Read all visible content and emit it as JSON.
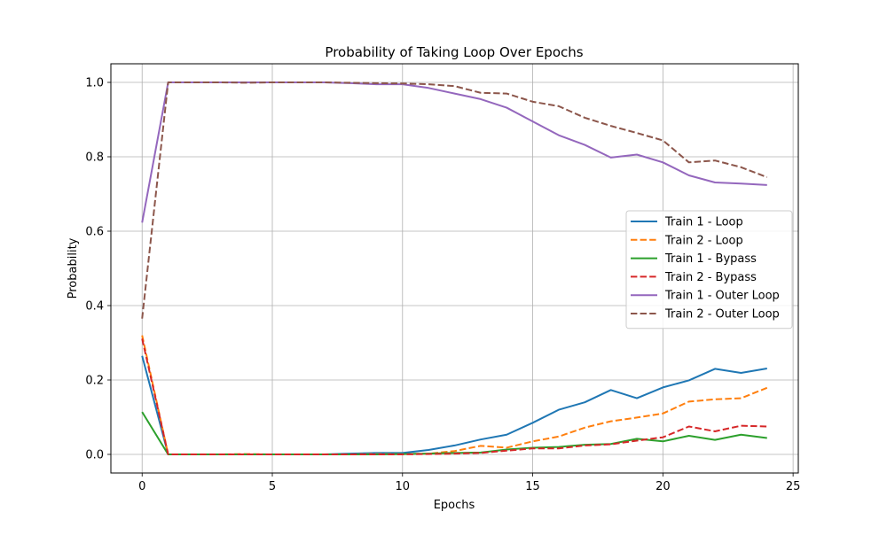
{
  "chart_data": {
    "type": "line",
    "title": "Probability of Taking Loop Over Epochs",
    "xlabel": "Epochs",
    "ylabel": "Probability",
    "xlim": [
      -1.2,
      25.2
    ],
    "ylim": [
      -0.05,
      1.05
    ],
    "xticks": [
      0,
      5,
      10,
      15,
      20,
      25
    ],
    "yticks": [
      0.0,
      0.2,
      0.4,
      0.6,
      0.8,
      1.0
    ],
    "xtick_labels": [
      "0",
      "5",
      "10",
      "15",
      "20",
      "25"
    ],
    "ytick_labels": [
      "0.0",
      "0.2",
      "0.4",
      "0.6",
      "0.8",
      "1.0"
    ],
    "grid": true,
    "legend_position": "center-right",
    "x": [
      0,
      1,
      2,
      3,
      4,
      5,
      6,
      7,
      8,
      9,
      10,
      11,
      12,
      13,
      14,
      15,
      16,
      17,
      18,
      19,
      20,
      21,
      22,
      23,
      24
    ],
    "series": [
      {
        "name": "Train 1 - Loop",
        "color": "#1f77b4",
        "dashed": false,
        "values": [
          0.265,
          0.0,
          0.0,
          0.0,
          0.0,
          0.0,
          0.0,
          0.0,
          0.002,
          0.004,
          0.004,
          0.012,
          0.024,
          0.04,
          0.053,
          0.085,
          0.12,
          0.14,
          0.173,
          0.151,
          0.18,
          0.199,
          0.23,
          0.219,
          0.231
        ]
      },
      {
        "name": "Train 2 - Loop",
        "color": "#ff7f0e",
        "dashed": true,
        "values": [
          0.32,
          0.0,
          0.0,
          0.0,
          0.001,
          0.0,
          0.0,
          0.0,
          0.0,
          0.001,
          0.001,
          0.002,
          0.009,
          0.023,
          0.018,
          0.035,
          0.048,
          0.072,
          0.089,
          0.099,
          0.11,
          0.142,
          0.148,
          0.151,
          0.179
        ]
      },
      {
        "name": "Train 1 - Bypass",
        "color": "#2ca02c",
        "dashed": false,
        "values": [
          0.114,
          0.0,
          0.0,
          0.0,
          0.0,
          0.0,
          0.0,
          0.0,
          0.0,
          0.0,
          0.001,
          0.002,
          0.004,
          0.005,
          0.013,
          0.018,
          0.02,
          0.026,
          0.028,
          0.042,
          0.035,
          0.05,
          0.039,
          0.053,
          0.044
        ]
      },
      {
        "name": "Train 2 - Bypass",
        "color": "#d62728",
        "dashed": true,
        "values": [
          0.311,
          0.0,
          0.0,
          0.0,
          0.0,
          0.0,
          0.0,
          0.0,
          0.0,
          0.0,
          0.0,
          0.001,
          0.002,
          0.004,
          0.01,
          0.016,
          0.016,
          0.024,
          0.027,
          0.037,
          0.046,
          0.075,
          0.062,
          0.077,
          0.075
        ]
      },
      {
        "name": "Train 1 - Outer Loop",
        "color": "#9467bd",
        "dashed": false,
        "values": [
          0.623,
          1.0,
          1.0,
          1.0,
          1.0,
          1.0,
          1.0,
          1.0,
          0.998,
          0.995,
          0.995,
          0.985,
          0.97,
          0.955,
          0.932,
          0.895,
          0.858,
          0.832,
          0.798,
          0.806,
          0.785,
          0.75,
          0.731,
          0.728,
          0.724
        ]
      },
      {
        "name": "Train 2 - Outer Loop",
        "color": "#8c564b",
        "dashed": true,
        "values": [
          0.365,
          1.0,
          1.0,
          1.0,
          0.999,
          1.0,
          1.0,
          1.0,
          0.999,
          0.998,
          0.997,
          0.995,
          0.99,
          0.972,
          0.97,
          0.948,
          0.936,
          0.905,
          0.883,
          0.864,
          0.844,
          0.785,
          0.79,
          0.772,
          0.745
        ]
      }
    ]
  }
}
